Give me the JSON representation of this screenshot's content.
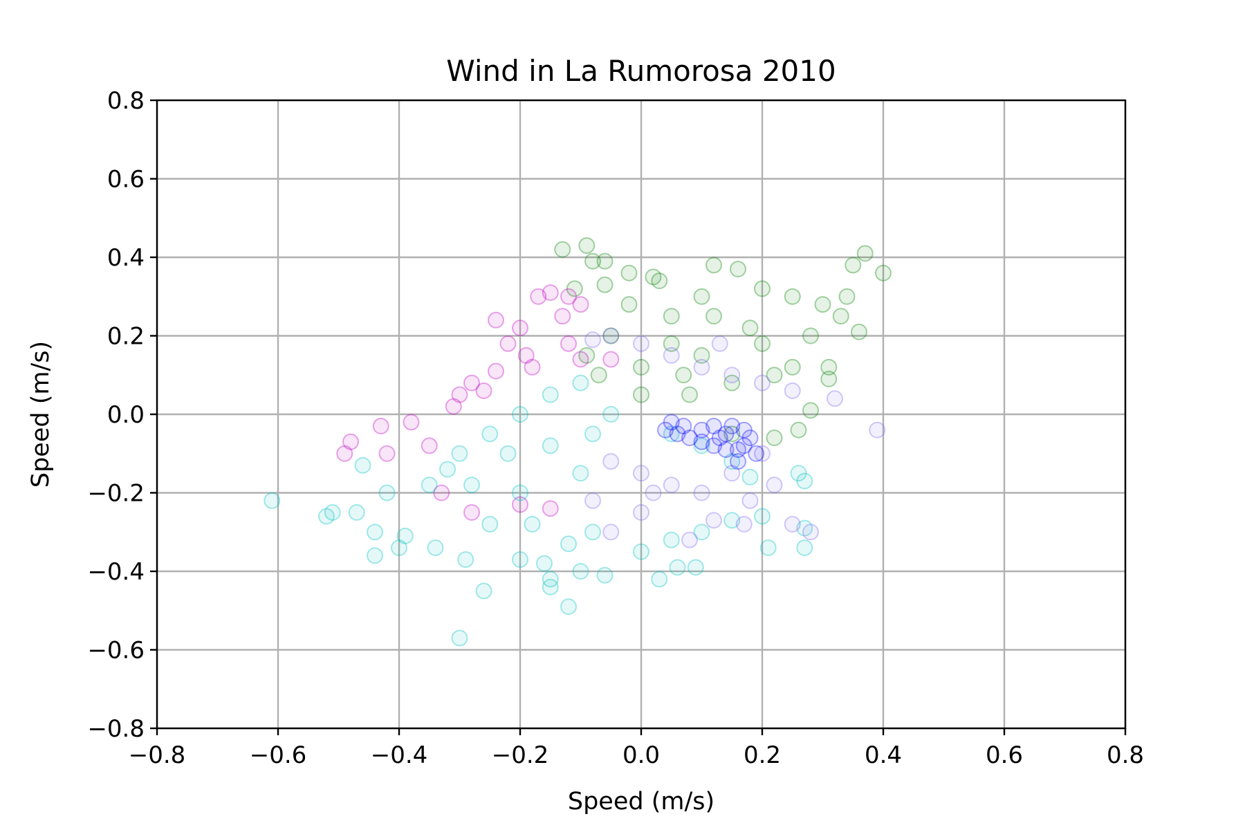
{
  "chart_data": {
    "type": "scatter",
    "title": "Wind in La Rumorosa 2010",
    "xlabel": "Speed (m/s)",
    "ylabel": "Speed (m/s)",
    "xlim": [
      -0.8,
      0.8
    ],
    "ylim": [
      -0.8,
      0.8
    ],
    "xticks": [
      -0.8,
      -0.6,
      -0.4,
      -0.2,
      0.0,
      0.2,
      0.4,
      0.6,
      0.8
    ],
    "yticks": [
      -0.8,
      -0.6,
      -0.4,
      -0.2,
      0.0,
      0.2,
      0.4,
      0.6,
      0.8
    ],
    "xtick_labels": [
      "−0.8",
      "−0.6",
      "−0.4",
      "−0.2",
      "0.0",
      "0.2",
      "0.4",
      "0.6",
      "0.8"
    ],
    "ytick_labels": [
      "−0.8",
      "−0.6",
      "−0.4",
      "−0.2",
      "0.0",
      "0.2",
      "0.4",
      "0.6",
      "0.8"
    ],
    "grid": true,
    "legend": false,
    "marker": "hollow circle, low opacity",
    "series": [
      {
        "color": "#008000",
        "points": [
          [
            -0.13,
            0.42
          ],
          [
            -0.09,
            0.43
          ],
          [
            -0.08,
            0.39
          ],
          [
            -0.06,
            0.39
          ],
          [
            -0.11,
            0.32
          ],
          [
            -0.06,
            0.33
          ],
          [
            -0.02,
            0.36
          ],
          [
            0.02,
            0.35
          ],
          [
            0.03,
            0.34
          ],
          [
            0.12,
            0.38
          ],
          [
            0.16,
            0.37
          ],
          [
            0.35,
            0.38
          ],
          [
            0.37,
            0.41
          ],
          [
            0.4,
            0.36
          ],
          [
            0.34,
            0.3
          ],
          [
            0.33,
            0.25
          ],
          [
            0.36,
            0.21
          ],
          [
            0.31,
            0.12
          ],
          [
            0.31,
            0.09
          ],
          [
            0.28,
            0.01
          ],
          [
            0.26,
            -0.04
          ],
          [
            0.22,
            -0.06
          ],
          [
            0.15,
            -0.05
          ],
          [
            0.0,
            0.12
          ],
          [
            -0.05,
            0.2
          ],
          [
            -0.09,
            0.15
          ],
          [
            -0.07,
            0.1
          ],
          [
            0.05,
            0.25
          ],
          [
            0.1,
            0.3
          ],
          [
            0.2,
            0.32
          ],
          [
            0.25,
            0.3
          ],
          [
            0.28,
            0.2
          ],
          [
            0.1,
            0.15
          ],
          [
            0.18,
            0.22
          ],
          [
            0.22,
            0.1
          ],
          [
            0.08,
            0.05
          ],
          [
            0.15,
            0.08
          ],
          [
            0.0,
            0.05
          ],
          [
            0.05,
            0.18
          ],
          [
            0.25,
            0.12
          ],
          [
            0.12,
            0.25
          ],
          [
            -0.02,
            0.28
          ],
          [
            0.07,
            0.1
          ],
          [
            0.2,
            0.18
          ],
          [
            0.3,
            0.28
          ]
        ]
      },
      {
        "color": "#bf00bf",
        "points": [
          [
            -0.49,
            -0.1
          ],
          [
            -0.48,
            -0.07
          ],
          [
            -0.43,
            -0.03
          ],
          [
            -0.42,
            -0.1
          ],
          [
            -0.38,
            -0.02
          ],
          [
            -0.3,
            0.05
          ],
          [
            -0.28,
            0.08
          ],
          [
            -0.24,
            0.11
          ],
          [
            -0.19,
            0.15
          ],
          [
            -0.12,
            0.18
          ],
          [
            -0.13,
            0.25
          ],
          [
            -0.1,
            0.28
          ],
          [
            -0.12,
            0.3
          ],
          [
            -0.15,
            0.31
          ],
          [
            -0.17,
            0.3
          ],
          [
            -0.2,
            0.22
          ],
          [
            -0.24,
            0.24
          ],
          [
            -0.22,
            0.18
          ],
          [
            -0.28,
            -0.25
          ],
          [
            -0.2,
            -0.23
          ],
          [
            -0.35,
            -0.08
          ],
          [
            -0.31,
            0.02
          ],
          [
            -0.26,
            0.06
          ],
          [
            -0.18,
            0.12
          ],
          [
            -0.1,
            0.14
          ],
          [
            -0.05,
            0.14
          ],
          [
            -0.33,
            -0.2
          ],
          [
            -0.15,
            -0.24
          ]
        ]
      },
      {
        "color": "#00bfbf",
        "points": [
          [
            -0.61,
            -0.22
          ],
          [
            -0.52,
            -0.26
          ],
          [
            -0.51,
            -0.25
          ],
          [
            -0.47,
            -0.25
          ],
          [
            -0.44,
            -0.3
          ],
          [
            -0.44,
            -0.36
          ],
          [
            -0.4,
            -0.34
          ],
          [
            -0.39,
            -0.31
          ],
          [
            -0.34,
            -0.34
          ],
          [
            -0.3,
            -0.57
          ],
          [
            -0.29,
            -0.37
          ],
          [
            -0.26,
            -0.45
          ],
          [
            -0.2,
            -0.37
          ],
          [
            -0.16,
            -0.38
          ],
          [
            -0.15,
            -0.42
          ],
          [
            -0.15,
            -0.44
          ],
          [
            -0.12,
            -0.49
          ],
          [
            -0.1,
            -0.4
          ],
          [
            -0.06,
            -0.41
          ],
          [
            0.03,
            -0.42
          ],
          [
            0.06,
            -0.39
          ],
          [
            0.09,
            -0.39
          ],
          [
            0.21,
            -0.34
          ],
          [
            0.27,
            -0.34
          ],
          [
            0.27,
            -0.29
          ],
          [
            0.26,
            -0.15
          ],
          [
            0.27,
            -0.17
          ],
          [
            -0.46,
            -0.13
          ],
          [
            -0.42,
            -0.2
          ],
          [
            -0.35,
            -0.18
          ],
          [
            -0.3,
            -0.1
          ],
          [
            -0.25,
            -0.05
          ],
          [
            -0.2,
            0.0
          ],
          [
            -0.15,
            0.05
          ],
          [
            -0.1,
            0.08
          ],
          [
            -0.05,
            0.0
          ],
          [
            -0.1,
            -0.15
          ],
          [
            -0.2,
            -0.2
          ],
          [
            -0.28,
            -0.18
          ],
          [
            -0.32,
            -0.14
          ],
          [
            -0.22,
            -0.1
          ],
          [
            -0.15,
            -0.08
          ],
          [
            -0.08,
            -0.05
          ],
          [
            -0.18,
            -0.28
          ],
          [
            -0.08,
            -0.3
          ],
          [
            0.05,
            -0.32
          ],
          [
            0.1,
            -0.3
          ],
          [
            0.15,
            -0.27
          ],
          [
            0.05,
            -0.05
          ],
          [
            0.1,
            -0.08
          ],
          [
            0.15,
            -0.12
          ],
          [
            0.18,
            -0.16
          ],
          [
            -0.12,
            -0.33
          ],
          [
            0.0,
            -0.35
          ],
          [
            -0.25,
            -0.28
          ],
          [
            0.2,
            -0.26
          ]
        ]
      },
      {
        "color": "#7b68ee",
        "points": [
          [
            -0.05,
            -0.12
          ],
          [
            0.0,
            -0.15
          ],
          [
            0.05,
            -0.18
          ],
          [
            0.1,
            -0.2
          ],
          [
            0.15,
            -0.15
          ],
          [
            0.18,
            -0.22
          ],
          [
            0.2,
            -0.1
          ],
          [
            0.22,
            -0.18
          ],
          [
            0.25,
            -0.28
          ],
          [
            0.28,
            -0.3
          ],
          [
            0.08,
            -0.32
          ],
          [
            0.0,
            -0.25
          ],
          [
            -0.08,
            -0.22
          ],
          [
            -0.05,
            -0.3
          ],
          [
            0.12,
            -0.27
          ],
          [
            0.32,
            0.04
          ],
          [
            0.39,
            -0.04
          ],
          [
            0.1,
            0.12
          ],
          [
            0.15,
            0.1
          ],
          [
            0.05,
            0.15
          ],
          [
            0.2,
            0.08
          ],
          [
            0.0,
            0.18
          ],
          [
            -0.05,
            0.2
          ],
          [
            -0.08,
            0.19
          ],
          [
            0.25,
            0.06
          ],
          [
            0.13,
            0.18
          ],
          [
            0.17,
            -0.28
          ],
          [
            0.02,
            -0.2
          ]
        ]
      },
      {
        "color": "#0000ff",
        "points": [
          [
            0.04,
            -0.04
          ],
          [
            0.06,
            -0.05
          ],
          [
            0.08,
            -0.06
          ],
          [
            0.1,
            -0.07
          ],
          [
            0.12,
            -0.08
          ],
          [
            0.14,
            -0.09
          ],
          [
            0.16,
            -0.09
          ],
          [
            0.17,
            -0.08
          ],
          [
            0.18,
            -0.06
          ],
          [
            0.17,
            -0.04
          ],
          [
            0.15,
            -0.03
          ],
          [
            0.12,
            -0.03
          ],
          [
            0.1,
            -0.04
          ],
          [
            0.07,
            -0.03
          ],
          [
            0.05,
            -0.02
          ],
          [
            0.13,
            -0.06
          ],
          [
            0.16,
            -0.12
          ],
          [
            0.19,
            -0.1
          ],
          [
            0.14,
            -0.05
          ]
        ]
      }
    ]
  }
}
